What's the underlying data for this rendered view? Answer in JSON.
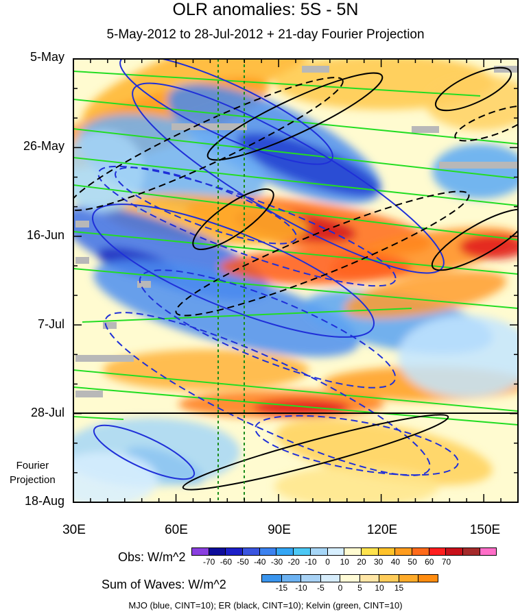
{
  "title": "OLR anomalies: 5S - 5N",
  "subtitle": "5-May-2012 to 28-Jul-2012 + 21-day Fourier Projection",
  "footer": "MJO (blue, CINT=10); ER (black, CINT=10); Kelvin (green, CINT=10)",
  "fourier_label_1": "Fourier",
  "fourier_label_2": "Projection",
  "colorbar_obs": {
    "title": "Obs: W/m^2",
    "colors": [
      "#8a3fe0",
      "#0d0c9a",
      "#1c1fc8",
      "#3a55e0",
      "#3c82f0",
      "#33a6f5",
      "#4cc8f5",
      "#a6d6f7",
      "#d7efff",
      "#fffbd0",
      "#ffe34e",
      "#ffc22a",
      "#ff9c1e",
      "#ff6a1a",
      "#ff1e1e",
      "#c8101a",
      "#a52a2a",
      "#ff6ec8"
    ],
    "labels": [
      "-70",
      "-60",
      "-50",
      "-40",
      "-30",
      "-20",
      "-10",
      "0",
      "10",
      "20",
      "30",
      "40",
      "50",
      "60",
      "70"
    ]
  },
  "colorbar_waves": {
    "title": "Sum of Waves: W/m^2",
    "colors": [
      "#3a95ee",
      "#6cb2f2",
      "#a8d2f5",
      "#d6ecfb",
      "#fffbd6",
      "#ffe6a6",
      "#ffcc5a",
      "#ffab2a",
      "#ff8c10"
    ],
    "labels": [
      "-15",
      "-10",
      "-5",
      "0",
      "5",
      "10",
      "15"
    ]
  },
  "chart_data": {
    "type": "heatmap",
    "title": "OLR anomalies: 5S - 5N",
    "subtitle": "5-May-2012 to 28-Jul-2012 + 21-day Fourier Projection",
    "x_axis": {
      "ticks": [
        "30E",
        "60E",
        "90E",
        "120E",
        "150E"
      ],
      "range": [
        30,
        160
      ],
      "units": "degrees longitude"
    },
    "y_axis": {
      "ticks": [
        "5-May",
        "26-May",
        "16-Jun",
        "7-Jul",
        "28-Jul",
        "18-Aug"
      ],
      "range": [
        "5-May-2012",
        "18-Aug-2012"
      ],
      "reversed": true
    },
    "observation_end": "28-Jul",
    "projection_label": "Fourier Projection",
    "vertical_reference_lines_lon": [
      72,
      80
    ],
    "overlays": [
      {
        "name": "MJO",
        "color": "blue",
        "cint": 10
      },
      {
        "name": "ER",
        "color": "black",
        "cint": 10
      },
      {
        "name": "Kelvin",
        "color": "green",
        "cint": 10
      }
    ]
  }
}
